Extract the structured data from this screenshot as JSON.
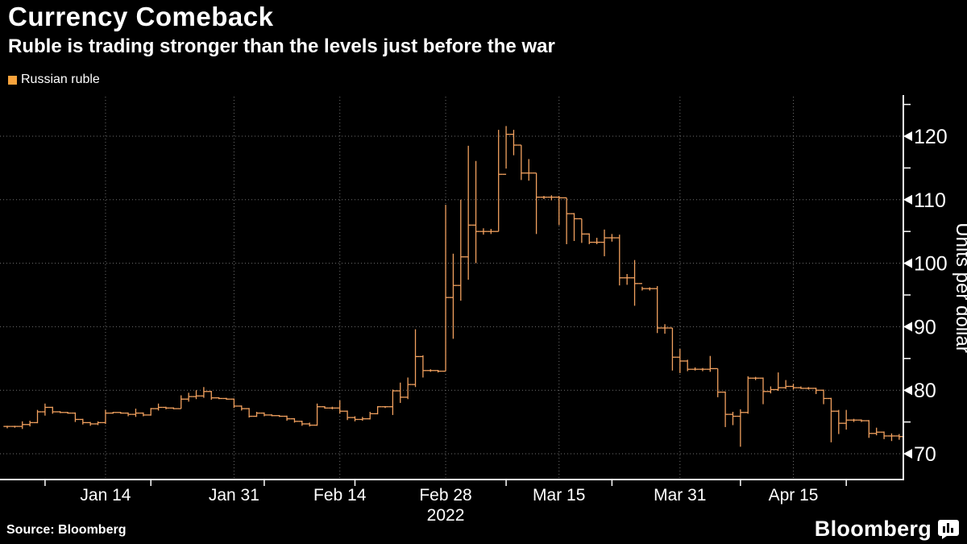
{
  "header": {
    "title": "Currency Comeback",
    "subtitle": "Ruble is trading stronger than the levels just before the war"
  },
  "legend": {
    "label": "Russian ruble",
    "swatch_color": "#F8A33C"
  },
  "footer": {
    "source": "Source: Bloomberg",
    "brand": "Bloomberg"
  },
  "colors": {
    "background": "#000000",
    "text": "#FFFFFF",
    "grid": "#6F6F6F",
    "axis": "#FFFFFF",
    "series": "#F2A15F",
    "legend_swatch": "#F8A33C"
  },
  "chart_data": {
    "type": "bar",
    "subtype": "ohlc-step-bars",
    "title": "Currency Comeback",
    "series_name": "Russian ruble",
    "ylabel": "Units per dollar",
    "x_unit": "daily, Jan 1 - Apr 29, 2022",
    "year_label": "2022",
    "ylim": [
      66,
      125.5
    ],
    "yticks_major": [
      70,
      80,
      90,
      100,
      110,
      120
    ],
    "yticks_minor": [
      75,
      85,
      95,
      105,
      115,
      125
    ],
    "grid": "dotted",
    "legend_position": "top-left",
    "xticks": [
      {
        "label": "Jan 14",
        "day_index": 13
      },
      {
        "label": "Jan 31",
        "day_index": 30
      },
      {
        "label": "Feb 14",
        "day_index": 44
      },
      {
        "label": "Feb 28",
        "day_index": 58,
        "sub_label": "2022"
      },
      {
        "label": "Mar 15",
        "day_index": 73
      },
      {
        "label": "Mar 31",
        "day_index": 89
      },
      {
        "label": "Apr 15",
        "day_index": 104
      }
    ],
    "xticks_minor_day_index": [
      5,
      19,
      34,
      46,
      66,
      80,
      97,
      111
    ],
    "point_format": [
      "date",
      "low",
      "high",
      "close"
    ],
    "note": "open of each bar equals previous close (step-style OHLC bars)",
    "points": [
      [
        "Jan 1",
        74.0,
        74.4,
        74.3
      ],
      [
        "Jan 2",
        74.1,
        74.4,
        74.3
      ],
      [
        "Jan 3",
        73.9,
        75.1,
        74.6
      ],
      [
        "Jan 4",
        74.3,
        75.2,
        74.9
      ],
      [
        "Jan 5",
        74.8,
        76.9,
        76.6
      ],
      [
        "Jan 6",
        76.0,
        77.9,
        77.3
      ],
      [
        "Jan 7",
        76.3,
        77.4,
        76.6
      ],
      [
        "Jan 8",
        76.4,
        76.7,
        76.5
      ],
      [
        "Jan 9",
        76.3,
        76.6,
        76.4
      ],
      [
        "Jan 10",
        75.0,
        76.5,
        75.4
      ],
      [
        "Jan 11",
        74.6,
        75.5,
        74.9
      ],
      [
        "Jan 12",
        74.4,
        75.0,
        74.7
      ],
      [
        "Jan 13",
        74.5,
        75.1,
        74.9
      ],
      [
        "Jan 14",
        74.7,
        76.9,
        76.4
      ],
      [
        "Jan 15",
        76.3,
        76.6,
        76.5
      ],
      [
        "Jan 16",
        76.3,
        76.6,
        76.4
      ],
      [
        "Jan 17",
        75.9,
        76.5,
        76.2
      ],
      [
        "Jan 18",
        75.8,
        77.1,
        76.4
      ],
      [
        "Jan 19",
        75.9,
        76.5,
        76.1
      ],
      [
        "Jan 20",
        76.0,
        77.2,
        77.1
      ],
      [
        "Jan 21",
        76.8,
        77.9,
        77.3
      ],
      [
        "Jan 22",
        77.0,
        77.4,
        77.2
      ],
      [
        "Jan 23",
        77.0,
        77.3,
        77.1
      ],
      [
        "Jan 24",
        77.1,
        79.2,
        78.6
      ],
      [
        "Jan 25",
        78.2,
        79.6,
        79.0
      ],
      [
        "Jan 26",
        78.6,
        80.0,
        79.1
      ],
      [
        "Jan 27",
        78.8,
        80.5,
        79.8
      ],
      [
        "Jan 28",
        78.5,
        79.9,
        78.8
      ],
      [
        "Jan 29",
        78.6,
        78.9,
        78.7
      ],
      [
        "Jan 30",
        78.5,
        78.8,
        78.6
      ],
      [
        "Jan 31",
        77.2,
        78.7,
        77.5
      ],
      [
        "Feb 1",
        76.8,
        77.6,
        77.1
      ],
      [
        "Feb 2",
        75.7,
        77.2,
        75.9
      ],
      [
        "Feb 3",
        75.8,
        76.6,
        76.4
      ],
      [
        "Feb 4",
        75.9,
        76.5,
        76.1
      ],
      [
        "Feb 5",
        75.9,
        76.2,
        76.0
      ],
      [
        "Feb 6",
        75.8,
        76.1,
        75.9
      ],
      [
        "Feb 7",
        75.2,
        76.0,
        75.5
      ],
      [
        "Feb 8",
        74.9,
        75.6,
        75.1
      ],
      [
        "Feb 9",
        74.4,
        75.2,
        74.7
      ],
      [
        "Feb 10",
        74.3,
        74.9,
        74.5
      ],
      [
        "Feb 11",
        74.4,
        77.9,
        77.4
      ],
      [
        "Feb 12",
        77.1,
        77.5,
        77.2
      ],
      [
        "Feb 13",
        77.0,
        77.4,
        77.2
      ],
      [
        "Feb 14",
        76.3,
        78.4,
        76.7
      ],
      [
        "Feb 15",
        75.3,
        76.8,
        75.7
      ],
      [
        "Feb 16",
        75.1,
        75.9,
        75.4
      ],
      [
        "Feb 17",
        75.2,
        75.8,
        75.5
      ],
      [
        "Feb 18",
        75.4,
        76.6,
        76.3
      ],
      [
        "Feb 19",
        76.2,
        77.5,
        77.4
      ],
      [
        "Feb 20",
        77.2,
        77.5,
        77.4
      ],
      [
        "Feb 21",
        76.1,
        80.1,
        79.9
      ],
      [
        "Feb 22",
        78.0,
        81.2,
        78.9
      ],
      [
        "Feb 23",
        78.6,
        82.0,
        80.9
      ],
      [
        "Feb 24",
        80.5,
        89.6,
        85.3
      ],
      [
        "Feb 25",
        82.0,
        85.5,
        83.1
      ],
      [
        "Feb 26",
        82.9,
        83.3,
        83.1
      ],
      [
        "Feb 27",
        82.8,
        83.2,
        83.0
      ],
      [
        "Feb 28",
        83.0,
        109.2,
        94.6
      ],
      [
        "Mar 1",
        88.1,
        101.5,
        96.5
      ],
      [
        "Mar 2",
        94.1,
        110.0,
        101.0
      ],
      [
        "Mar 3",
        97.4,
        118.5,
        106.0
      ],
      [
        "Mar 4",
        100.0,
        116.1,
        105.0
      ],
      [
        "Mar 5",
        104.5,
        105.5,
        105.0
      ],
      [
        "Mar 6",
        104.6,
        105.4,
        105.0
      ],
      [
        "Mar 7",
        105.0,
        121.0,
        114.0
      ],
      [
        "Mar 8",
        114.9,
        121.6,
        120.3
      ],
      [
        "Mar 9",
        117.0,
        121.0,
        118.6
      ],
      [
        "Mar 10",
        113.1,
        118.6,
        114.2
      ],
      [
        "Mar 11",
        113.0,
        116.4,
        114.2
      ],
      [
        "Mar 12",
        104.6,
        114.2,
        110.4
      ],
      [
        "Mar 13",
        110.1,
        110.6,
        110.4
      ],
      [
        "Mar 14",
        109.9,
        110.7,
        110.4
      ],
      [
        "Mar 15",
        106.0,
        110.6,
        110.3
      ],
      [
        "Mar 16",
        103.0,
        110.3,
        107.8
      ],
      [
        "Mar 17",
        103.5,
        107.9,
        107.0
      ],
      [
        "Mar 18",
        103.2,
        107.0,
        104.6
      ],
      [
        "Mar 19",
        103.0,
        104.7,
        103.3
      ],
      [
        "Mar 20",
        103.0,
        104.0,
        103.3
      ],
      [
        "Mar 21",
        101.1,
        105.3,
        104.0
      ],
      [
        "Mar 22",
        103.4,
        104.6,
        104.0
      ],
      [
        "Mar 23",
        96.5,
        104.5,
        97.7
      ],
      [
        "Mar 24",
        96.6,
        98.3,
        97.7
      ],
      [
        "Mar 25",
        93.3,
        100.5,
        96.8
      ],
      [
        "Mar 26",
        95.7,
        96.3,
        96.0
      ],
      [
        "Mar 27",
        95.7,
        96.2,
        96.0
      ],
      [
        "Mar 28",
        89.0,
        96.4,
        89.8
      ],
      [
        "Mar 29",
        88.9,
        90.4,
        89.8
      ],
      [
        "Mar 30",
        83.1,
        89.8,
        85.2
      ],
      [
        "Mar 31",
        82.7,
        86.5,
        84.6
      ],
      [
        "Apr 1",
        83.0,
        84.8,
        83.3
      ],
      [
        "Apr 2",
        83.1,
        83.6,
        83.3
      ],
      [
        "Apr 3",
        83.0,
        83.5,
        83.3
      ],
      [
        "Apr 4",
        82.9,
        85.4,
        83.4
      ],
      [
        "Apr 5",
        78.9,
        83.4,
        79.7
      ],
      [
        "Apr 6",
        74.2,
        79.8,
        76.2
      ],
      [
        "Apr 7",
        74.5,
        76.6,
        75.9
      ],
      [
        "Apr 8",
        71.1,
        77.0,
        76.5
      ],
      [
        "Apr 9",
        76.3,
        82.2,
        81.9
      ],
      [
        "Apr 10",
        81.6,
        82.1,
        81.9
      ],
      [
        "Apr 11",
        77.8,
        82.0,
        79.8
      ],
      [
        "Apr 12",
        79.5,
        80.6,
        80.1
      ],
      [
        "Apr 13",
        79.9,
        82.8,
        80.4
      ],
      [
        "Apr 14",
        80.2,
        81.6,
        80.6
      ],
      [
        "Apr 15",
        80.1,
        81.0,
        80.4
      ],
      [
        "Apr 16",
        80.2,
        80.6,
        80.3
      ],
      [
        "Apr 17",
        80.1,
        80.5,
        80.3
      ],
      [
        "Apr 18",
        79.4,
        80.4,
        80.0
      ],
      [
        "Apr 19",
        77.8,
        80.1,
        78.7
      ],
      [
        "Apr 20",
        71.8,
        78.8,
        76.7
      ],
      [
        "Apr 21",
        73.1,
        76.9,
        74.8
      ],
      [
        "Apr 22",
        73.8,
        76.9,
        75.3
      ],
      [
        "Apr 23",
        75.0,
        75.5,
        75.3
      ],
      [
        "Apr 24",
        75.0,
        75.4,
        75.2
      ],
      [
        "Apr 25",
        72.5,
        75.3,
        73.2
      ],
      [
        "Apr 26",
        72.9,
        74.1,
        73.4
      ],
      [
        "Apr 27",
        72.3,
        73.5,
        72.8
      ],
      [
        "Apr 28",
        72.0,
        73.2,
        72.8
      ],
      [
        "Apr 29",
        72.2,
        73.1,
        72.7
      ]
    ]
  }
}
